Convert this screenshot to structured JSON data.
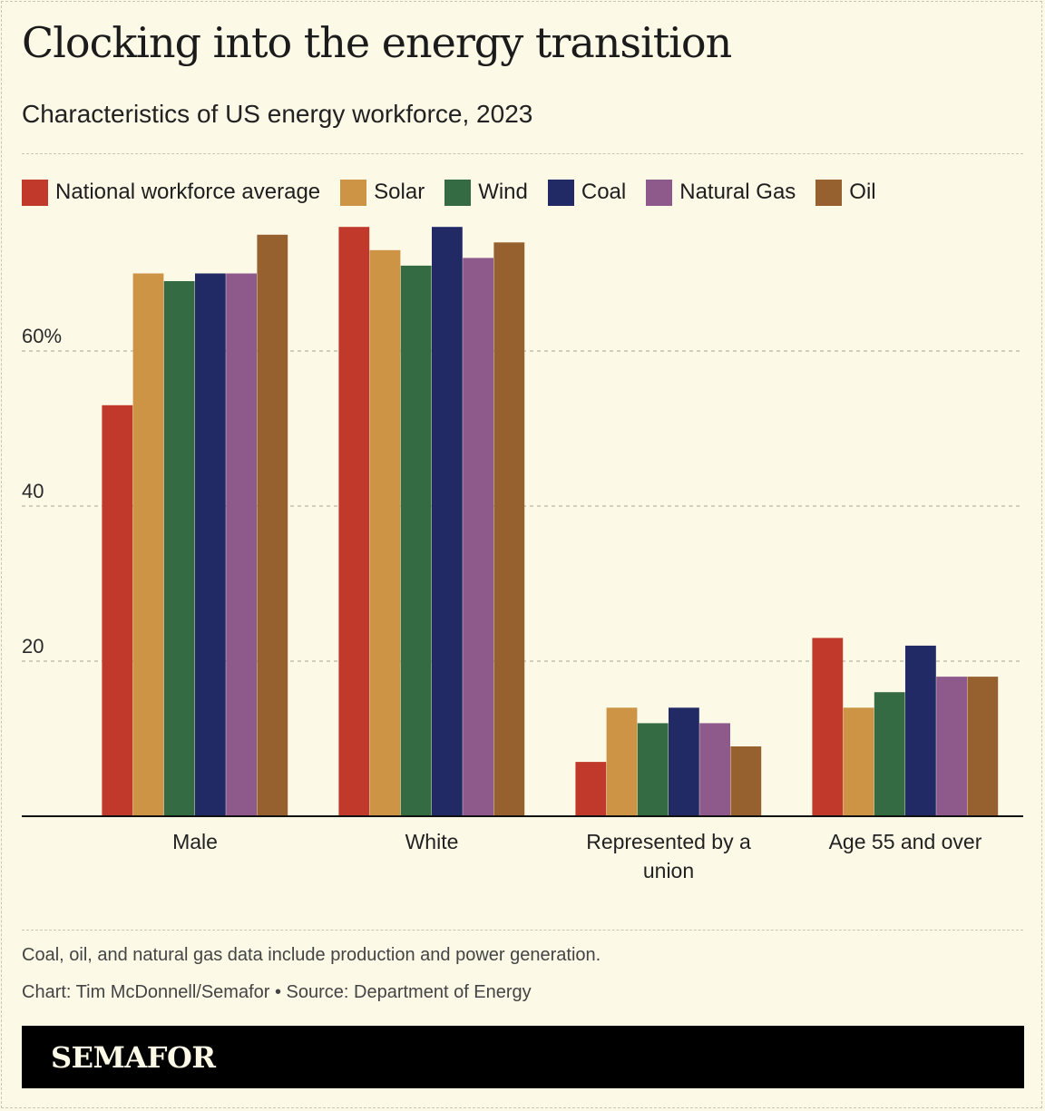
{
  "header": {
    "title": "Clocking into the energy transition",
    "subtitle": "Characteristics of US energy workforce, 2023"
  },
  "chart_data": {
    "type": "bar",
    "categories": [
      [
        "Male"
      ],
      [
        "White"
      ],
      [
        "Represented by a",
        "union"
      ],
      [
        "Age 55 and over"
      ]
    ],
    "series": [
      {
        "name": "National workforce average",
        "color": "#c0392b",
        "values": [
          53,
          76,
          7,
          23
        ]
      },
      {
        "name": "Solar",
        "color": "#cc9444",
        "values": [
          70,
          73,
          14,
          14
        ]
      },
      {
        "name": "Wind",
        "color": "#356b42",
        "values": [
          69,
          71,
          12,
          16
        ]
      },
      {
        "name": "Coal",
        "color": "#222a66",
        "values": [
          70,
          76,
          14,
          22
        ]
      },
      {
        "name": "Natural Gas",
        "color": "#8e5a8c",
        "values": [
          70,
          72,
          12,
          18
        ]
      },
      {
        "name": "Oil",
        "color": "#97602f",
        "values": [
          75,
          74,
          9,
          18
        ]
      }
    ],
    "yticks": [
      {
        "value": 20,
        "label": "20"
      },
      {
        "value": 40,
        "label": "40"
      },
      {
        "value": 60,
        "label": "60%"
      }
    ],
    "ylim": [
      0,
      80
    ],
    "grid": true,
    "legend_position": "top"
  },
  "notes": {
    "footnote": "Coal, oil, and natural gas data include production and power generation.",
    "credit": "Chart: Tim McDonnell/Semafor • Source: Department of Energy"
  },
  "footer": {
    "brand": "SEMAFOR"
  }
}
